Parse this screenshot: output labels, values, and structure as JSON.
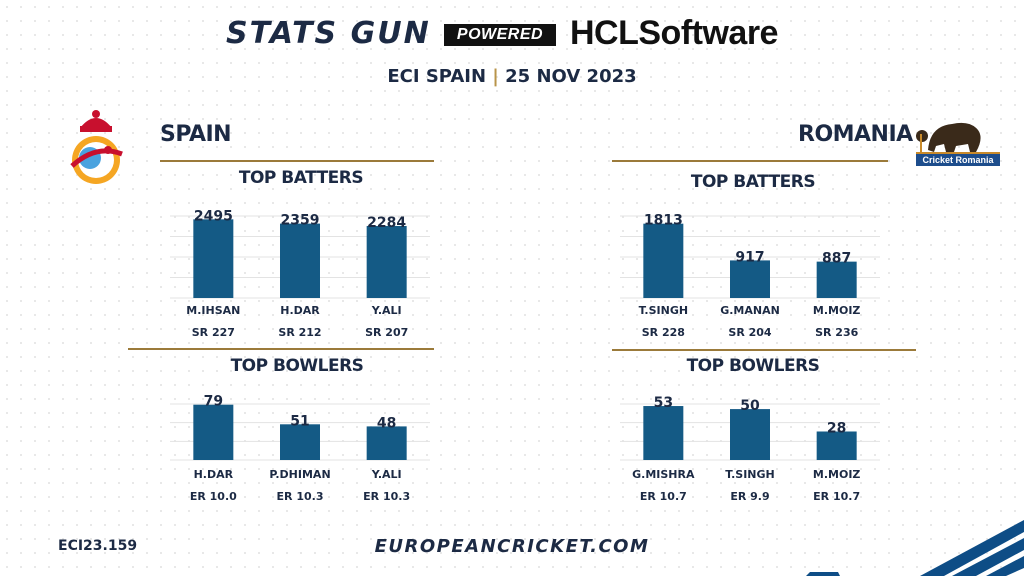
{
  "header": {
    "title": "STATS GUN",
    "powered_by": "POWERED BY",
    "brand": "HCLSoftware",
    "subtitle_left": "ECI SPAIN",
    "subtitle_sep": "|",
    "subtitle_right": "25 NOV 2023"
  },
  "colors": {
    "bar": "#145a85",
    "navy": "#1c2a44",
    "gold": "#9b7a3a",
    "footer_stripe": "#0e4d86"
  },
  "teams": {
    "spain": {
      "name": "SPAIN",
      "logo_icon": "spain-cricket-crest-icon"
    },
    "romania": {
      "name": "ROMANIA",
      "logo_icon": "cricket-romania-bear-logo-icon",
      "logo_text": "Cricket Romania"
    }
  },
  "sections": {
    "top_batters": "TOP BATTERS",
    "top_bowlers": "TOP BOWLERS"
  },
  "chart_data": [
    {
      "type": "bar",
      "title": "TOP BATTERS",
      "team": "SPAIN",
      "categories": [
        "M.IHSAN",
        "H.DAR",
        "Y.ALI"
      ],
      "values": [
        2495,
        2359,
        2284
      ],
      "sublabels": [
        "SR 227",
        "SR 212",
        "SR 207"
      ],
      "ylim": [
        0,
        2600
      ]
    },
    {
      "type": "bar",
      "title": "TOP BATTERS",
      "team": "ROMANIA",
      "categories": [
        "T.SINGH",
        "G.MANAN",
        "M.MOIZ"
      ],
      "values": [
        1813,
        917,
        887
      ],
      "sublabels": [
        "SR 228",
        "SR 204",
        "SR 236"
      ],
      "ylim": [
        0,
        2000
      ]
    },
    {
      "type": "bar",
      "title": "TOP BOWLERS",
      "team": "SPAIN",
      "categories": [
        "H.DAR",
        "P.DHIMAN",
        "Y.ALI"
      ],
      "values": [
        79,
        51,
        48
      ],
      "sublabels": [
        "ER 10.0",
        "ER 10.3",
        "ER 10.3"
      ],
      "ylim": [
        0,
        80
      ]
    },
    {
      "type": "bar",
      "title": "TOP BOWLERS",
      "team": "ROMANIA",
      "categories": [
        "G.MISHRA",
        "T.SINGH",
        "M.MOIZ"
      ],
      "values": [
        53,
        50,
        28
      ],
      "sublabels": [
        "ER 10.7",
        "ER 9.9",
        "ER 10.7"
      ],
      "ylim": [
        0,
        55
      ]
    }
  ],
  "footer": {
    "code": "ECI23.159",
    "url": "EUROPEANCRICKET.COM"
  }
}
